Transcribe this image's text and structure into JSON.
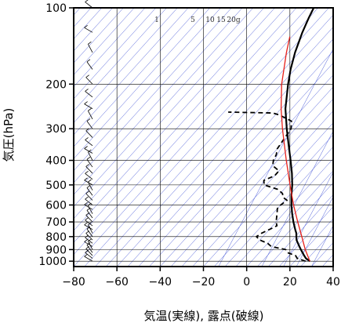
{
  "chart_data": {
    "type": "line",
    "xlabel": "気温(実線), 露点(破線)",
    "ylabel": "気圧(hPa)",
    "xlim": [
      -80,
      40
    ],
    "ylim": [
      1050,
      100
    ],
    "y_scale": "log",
    "grid": true,
    "x_ticks": [
      "−80",
      "−60",
      "−40",
      "−20",
      "0",
      "20",
      "40"
    ],
    "y_ticks": [
      "100",
      "200",
      "300",
      "400",
      "500",
      "600",
      "700",
      "800",
      "900",
      "1000"
    ],
    "mixing_ratio_labels": [
      "1",
      "5",
      "10",
      "15",
      "20g"
    ],
    "colors": {
      "temperature": "#000000",
      "dewpoint": "#000000",
      "parcel": "#e8201a",
      "isotherm": "#4a5bd8",
      "isobar": "#000000",
      "wind": "#000000"
    },
    "series": [
      {
        "points": [
          [
            1000,
            27
          ],
          [
            975,
            24
          ],
          [
            950,
            22
          ],
          [
            925,
            20
          ],
          [
            900,
            18
          ],
          [
            875,
            16
          ],
          [
            850,
            14
          ],
          [
            825,
            12
          ],
          [
            800,
            10.5
          ],
          [
            775,
            9
          ],
          [
            750,
            7
          ],
          [
            700,
            3
          ],
          [
            650,
            -1
          ],
          [
            600,
            -5
          ],
          [
            550,
            -9
          ],
          [
            500,
            -13
          ],
          [
            450,
            -18
          ],
          [
            400,
            -24
          ],
          [
            350,
            -31
          ],
          [
            300,
            -39
          ],
          [
            250,
            -48
          ],
          [
            200,
            -57
          ],
          [
            175,
            -62
          ],
          [
            150,
            -67
          ],
          [
            125,
            -72
          ],
          [
            110,
            -75
          ],
          [
            100,
            -77
          ]
        ]
      },
      {
        "points": [
          [
            1000,
            25
          ],
          [
            975,
            20
          ],
          [
            950,
            18
          ],
          [
            925,
            13
          ],
          [
            900,
            11
          ],
          [
            875,
            3
          ],
          [
            850,
            0
          ],
          [
            825,
            -5
          ],
          [
            800,
            -8
          ],
          [
            775,
            -7
          ],
          [
            750,
            -5
          ],
          [
            725,
            -3
          ],
          [
            700,
            -5
          ],
          [
            650,
            -8
          ],
          [
            620,
            -10
          ],
          [
            600,
            -10
          ],
          [
            575,
            -9
          ],
          [
            560,
            -12
          ],
          [
            540,
            -14
          ],
          [
            520,
            -18
          ],
          [
            500,
            -26
          ],
          [
            480,
            -28
          ],
          [
            460,
            -25
          ],
          [
            440,
            -25
          ],
          [
            420,
            -30
          ],
          [
            400,
            -32
          ],
          [
            380,
            -33
          ],
          [
            360,
            -35
          ],
          [
            330,
            -36
          ],
          [
            300,
            -37
          ],
          [
            280,
            -40
          ],
          [
            265,
            -48
          ],
          [
            260,
            -52
          ],
          [
            258,
            -73
          ]
        ]
      },
      {
        "points": [
          [
            1000,
            27
          ],
          [
            900,
            20
          ],
          [
            800,
            13
          ],
          [
            700,
            5
          ],
          [
            600,
            -4
          ],
          [
            500,
            -14
          ],
          [
            400,
            -26
          ],
          [
            300,
            -41
          ],
          [
            250,
            -50
          ],
          [
            200,
            -60
          ],
          [
            150,
            -71
          ],
          [
            130,
            -76
          ]
        ]
      }
    ],
    "wind_profile_pressures": [
      1000,
      975,
      950,
      925,
      900,
      875,
      850,
      825,
      800,
      775,
      750,
      725,
      700,
      675,
      650,
      625,
      600,
      575,
      550,
      525,
      500,
      475,
      450,
      425,
      400,
      375,
      350,
      325,
      300,
      275,
      250,
      225,
      200,
      175,
      150,
      125,
      100
    ]
  }
}
